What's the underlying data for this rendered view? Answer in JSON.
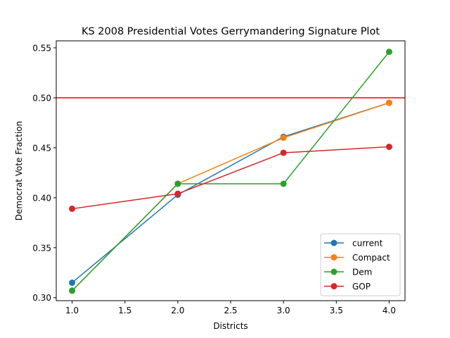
{
  "chart_data": {
    "type": "line",
    "title": "KS 2008 Presidential Votes Gerrymandering Signature Plot",
    "xlabel": "Districts",
    "ylabel": "Democrat Vote Fraction",
    "xlim": [
      0.85,
      4.15
    ],
    "ylim": [
      0.297,
      0.557
    ],
    "x_ticks": [
      1.0,
      1.5,
      2.0,
      2.5,
      3.0,
      3.5,
      4.0
    ],
    "x_tick_labels": [
      "1.0",
      "1.5",
      "2.0",
      "2.5",
      "3.0",
      "3.5",
      "4.0"
    ],
    "y_ticks": [
      0.3,
      0.35,
      0.4,
      0.45,
      0.5,
      0.55
    ],
    "y_tick_labels": [
      "0.30",
      "0.35",
      "0.40",
      "0.45",
      "0.50",
      "0.55"
    ],
    "grid": false,
    "legend_position": "lower-right",
    "x": [
      1,
      2,
      3,
      4
    ],
    "series": [
      {
        "name": "current",
        "color": "#1f77b4",
        "values": [
          0.315,
          0.403,
          0.461,
          0.495
        ]
      },
      {
        "name": "Compact",
        "color": "#ff7f0e",
        "values": [
          0.307,
          0.414,
          0.46,
          0.495
        ]
      },
      {
        "name": "Dem",
        "color": "#2ca02c",
        "values": [
          0.307,
          0.414,
          0.414,
          0.546
        ]
      },
      {
        "name": "GOP",
        "color": "#d62728",
        "values": [
          0.389,
          0.404,
          0.445,
          0.451
        ]
      }
    ],
    "reference_lines": [
      {
        "type": "horizontal",
        "y": 0.5,
        "color": "#ff0000"
      }
    ]
  }
}
